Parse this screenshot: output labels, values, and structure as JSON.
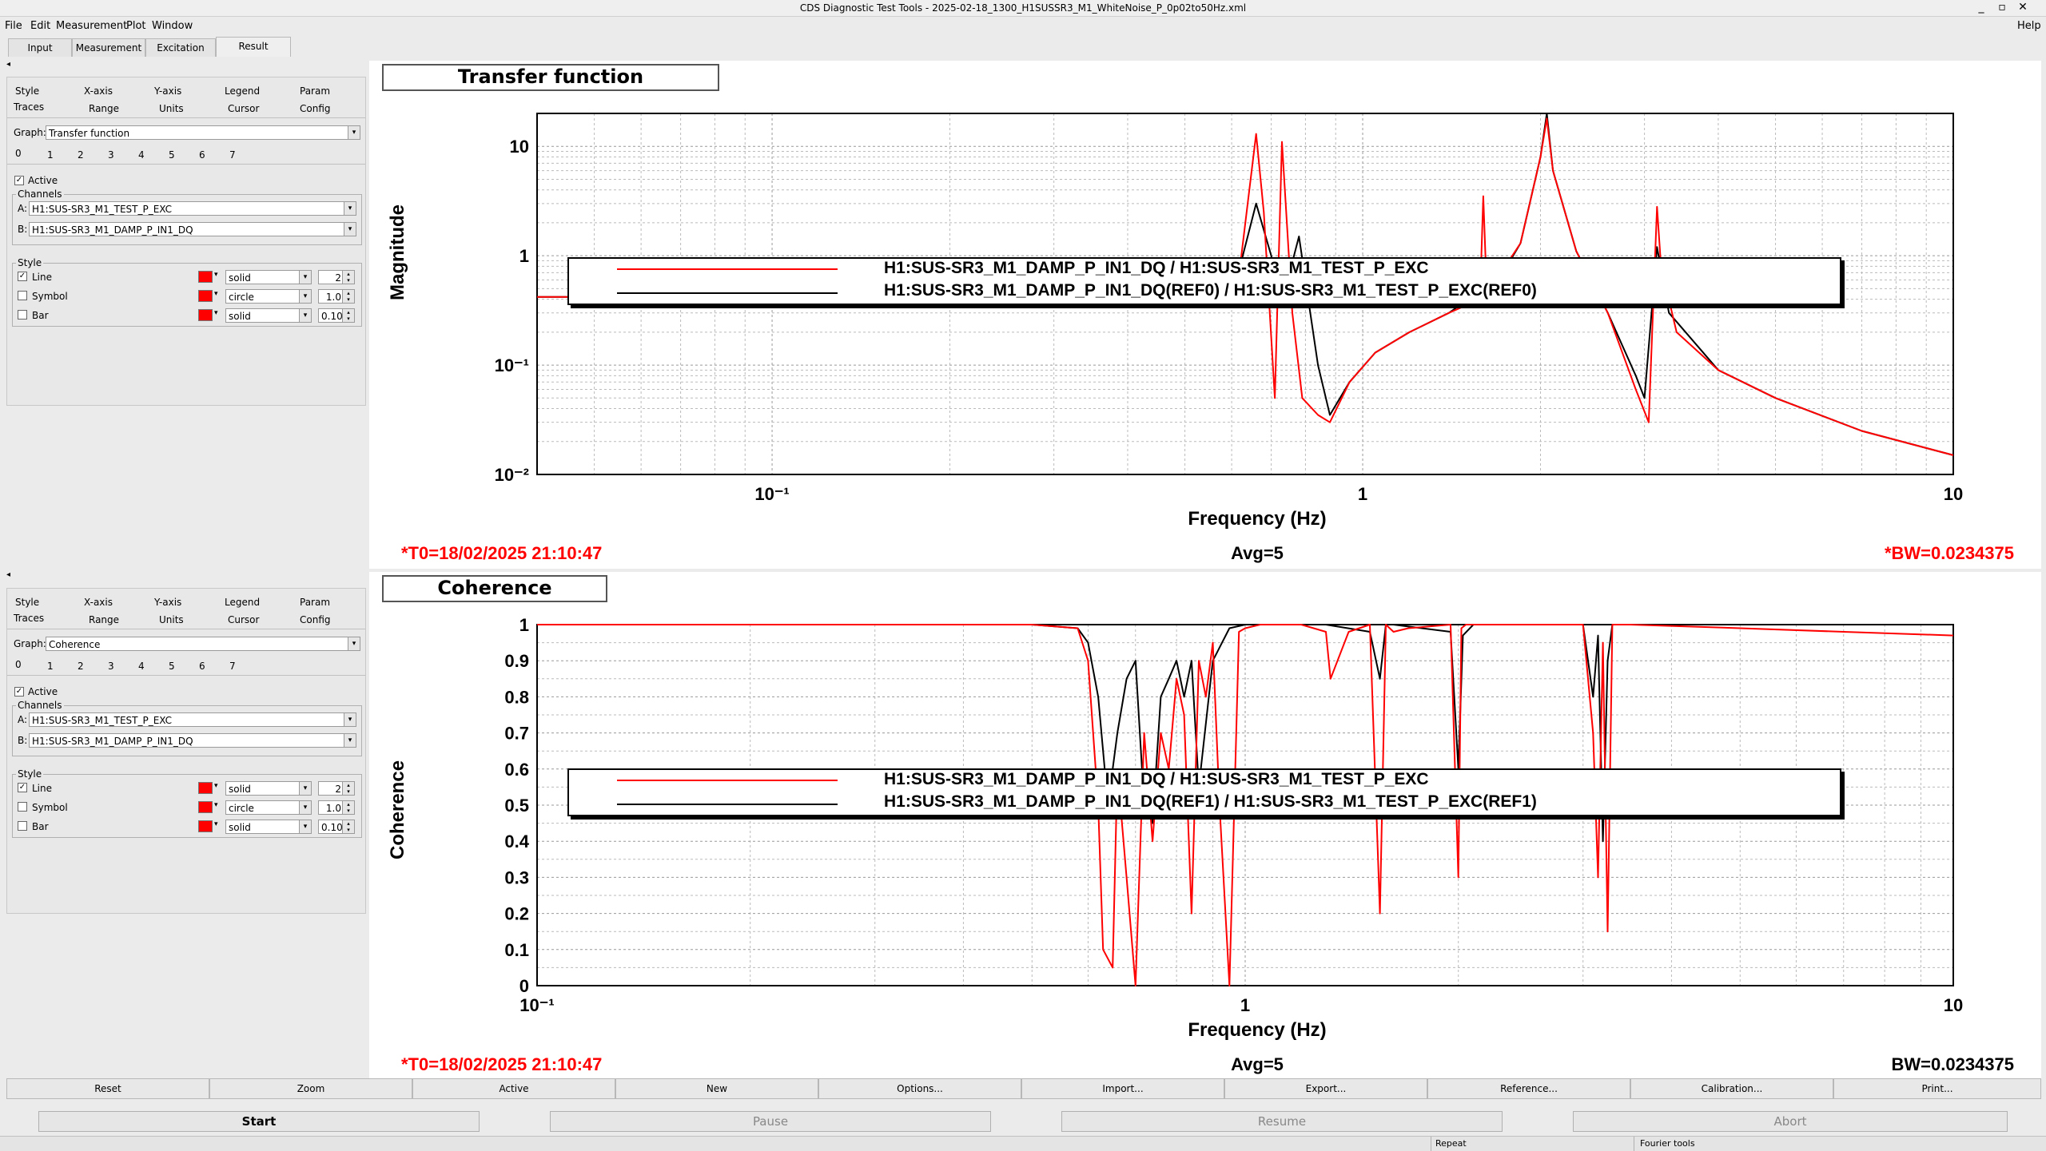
{
  "window": {
    "title": "CDS Diagnostic Test Tools - 2025-02-18_1300_H1SUSSR3_M1_WhiteNoise_P_0p02to50Hz.xml",
    "help": "Help"
  },
  "menu": [
    "File",
    "Edit",
    "Measurement",
    "Plot",
    "Window"
  ],
  "tabs": [
    "Input",
    "Measurement",
    "Excitation",
    "Result"
  ],
  "panels": [
    {
      "subtabs_row1": [
        "Style",
        "X-axis",
        "Y-axis",
        "Legend",
        "Param"
      ],
      "subtabs_row2": [
        "Traces",
        "Range",
        "Units",
        "Cursor",
        "Config"
      ],
      "graph_label": "Graph:",
      "graph_value": "Transfer function",
      "trace_tabs": [
        "0",
        "1",
        "2",
        "3",
        "4",
        "5",
        "6",
        "7"
      ],
      "active_label": "Active",
      "channels_label": "Channels",
      "channel_a_label": "A:",
      "channel_a": "H1:SUS-SR3_M1_TEST_P_EXC",
      "channel_b_label": "B:",
      "channel_b": "H1:SUS-SR3_M1_DAMP_P_IN1_DQ",
      "style_label": "Style",
      "line_label": "Line",
      "line_style": "solid",
      "line_width": "2",
      "symbol_label": "Symbol",
      "symbol_style": "circle",
      "symbol_size": "1.0",
      "bar_label": "Bar",
      "bar_style": "solid",
      "bar_width": "0.10"
    },
    {
      "subtabs_row1": [
        "Style",
        "X-axis",
        "Y-axis",
        "Legend",
        "Param"
      ],
      "subtabs_row2": [
        "Traces",
        "Range",
        "Units",
        "Cursor",
        "Config"
      ],
      "graph_label": "Graph:",
      "graph_value": "Coherence",
      "trace_tabs": [
        "0",
        "1",
        "2",
        "3",
        "4",
        "5",
        "6",
        "7"
      ],
      "active_label": "Active",
      "channels_label": "Channels",
      "channel_a_label": "A:",
      "channel_a": "H1:SUS-SR3_M1_TEST_P_EXC",
      "channel_b_label": "B:",
      "channel_b": "H1:SUS-SR3_M1_DAMP_P_IN1_DQ",
      "style_label": "Style",
      "line_label": "Line",
      "line_style": "solid",
      "line_width": "2",
      "symbol_label": "Symbol",
      "symbol_style": "circle",
      "symbol_size": "1.0",
      "bar_label": "Bar",
      "bar_style": "solid",
      "bar_width": "0.10"
    }
  ],
  "plots": [
    {
      "title": "Transfer function",
      "ylabel": "Magnitude",
      "xlabel": "Frequency (Hz)",
      "yticks": [
        "10",
        "1",
        "10⁻¹",
        "10⁻²"
      ],
      "xticks": [
        "10⁻¹",
        "1",
        "10"
      ],
      "legend": [
        "H1:SUS-SR3_M1_DAMP_P_IN1_DQ / H1:SUS-SR3_M1_TEST_P_EXC",
        "H1:SUS-SR3_M1_DAMP_P_IN1_DQ(REF0) / H1:SUS-SR3_M1_TEST_P_EXC(REF0)"
      ],
      "t0": "*T0=18/02/2025 21:10:47",
      "avg": "Avg=5",
      "bw": "*BW=0.0234375",
      "bw_color": "#ff0000"
    },
    {
      "title": "Coherence",
      "ylabel": "Coherence",
      "xlabel": "Frequency (Hz)",
      "yticks": [
        "1",
        "0.9",
        "0.8",
        "0.7",
        "0.6",
        "0.5",
        "0.4",
        "0.3",
        "0.2",
        "0.1",
        "0"
      ],
      "xticks": [
        "10⁻¹",
        "1",
        "10"
      ],
      "legend": [
        "H1:SUS-SR3_M1_DAMP_P_IN1_DQ / H1:SUS-SR3_M1_TEST_P_EXC",
        "H1:SUS-SR3_M1_DAMP_P_IN1_DQ(REF1) / H1:SUS-SR3_M1_TEST_P_EXC(REF1)"
      ],
      "t0": "*T0=18/02/2025 21:10:47",
      "avg": "Avg=5",
      "bw": "BW=0.0234375",
      "bw_color": "#000000"
    }
  ],
  "colors": {
    "trace": "#ff0000",
    "reference": "#000000",
    "stat_red": "#ff0000"
  },
  "buttons_row1": [
    "Reset",
    "Zoom",
    "Active",
    "New",
    "Options...",
    "Import...",
    "Export...",
    "Reference...",
    "Calibration...",
    "Print..."
  ],
  "buttons_row2": [
    "Start",
    "Pause",
    "Resume",
    "Abort"
  ],
  "status": [
    "Repeat",
    "Fourier tools"
  ],
  "chart_data": [
    {
      "type": "line",
      "title": "Transfer function",
      "xlabel": "Frequency (Hz)",
      "ylabel": "Magnitude",
      "xscale": "log",
      "yscale": "log",
      "xlim": [
        0.04,
        10
      ],
      "ylim": [
        0.01,
        20
      ],
      "grid": true,
      "legend_position": "bottom",
      "series": [
        {
          "name": "H1:SUS-SR3_M1_DAMP_P_IN1_DQ / H1:SUS-SR3_M1_TEST_P_EXC",
          "color": "#ff0000",
          "x": [
            0.04,
            0.1,
            0.2,
            0.4,
            0.55,
            0.62,
            0.66,
            0.68,
            0.71,
            0.73,
            0.76,
            0.79,
            0.84,
            0.88,
            0.95,
            1.05,
            1.2,
            1.4,
            1.58,
            1.6,
            1.62,
            1.7,
            1.85,
            2.0,
            2.05,
            2.1,
            2.3,
            2.6,
            2.9,
            3.05,
            3.15,
            3.2,
            3.4,
            4,
            5,
            7,
            10
          ],
          "y": [
            0.42,
            0.42,
            0.43,
            0.46,
            0.55,
            0.8,
            13,
            2.5,
            0.05,
            11,
            0.3,
            0.05,
            0.035,
            0.03,
            0.07,
            0.13,
            0.2,
            0.3,
            0.4,
            3.5,
            0.55,
            0.65,
            1.3,
            8,
            18,
            6,
            1.1,
            0.3,
            0.06,
            0.03,
            2.8,
            0.8,
            0.2,
            0.09,
            0.05,
            0.025,
            0.015
          ]
        },
        {
          "name": "H1:SUS-SR3_M1_DAMP_P_IN1_DQ(REF0) / H1:SUS-SR3_M1_TEST_P_EXC(REF0)",
          "color": "#000000",
          "x": [
            0.04,
            0.1,
            0.2,
            0.4,
            0.55,
            0.62,
            0.66,
            0.7,
            0.72,
            0.74,
            0.78,
            0.84,
            0.88,
            0.95,
            1.05,
            1.2,
            1.4,
            1.6,
            1.7,
            1.85,
            2.0,
            2.05,
            2.1,
            2.3,
            2.6,
            2.9,
            3.0,
            3.15,
            3.3,
            4,
            5,
            7,
            10
          ],
          "y": [
            0.42,
            0.42,
            0.43,
            0.46,
            0.55,
            0.8,
            3.0,
            1.0,
            0.4,
            0.5,
            1.5,
            0.1,
            0.035,
            0.07,
            0.13,
            0.2,
            0.3,
            0.5,
            0.6,
            1.3,
            8,
            20,
            6,
            1.1,
            0.3,
            0.08,
            0.05,
            1.2,
            0.3,
            0.09,
            0.05,
            0.025,
            0.015
          ]
        }
      ]
    },
    {
      "type": "line",
      "title": "Coherence",
      "xlabel": "Frequency (Hz)",
      "ylabel": "Coherence",
      "xscale": "log",
      "xlim": [
        0.1,
        10
      ],
      "ylim": [
        0,
        1
      ],
      "grid": true,
      "legend_position": "bottom",
      "series": [
        {
          "name": "H1:SUS-SR3_M1_DAMP_P_IN1_DQ / H1:SUS-SR3_M1_TEST_P_EXC",
          "color": "#ff0000",
          "x": [
            0.1,
            0.5,
            0.58,
            0.6,
            0.62,
            0.63,
            0.65,
            0.66,
            0.68,
            0.7,
            0.72,
            0.74,
            0.76,
            0.78,
            0.8,
            0.82,
            0.84,
            0.86,
            0.88,
            0.9,
            0.92,
            0.95,
            0.98,
            1.0,
            1.05,
            1.2,
            1.3,
            1.32,
            1.4,
            1.5,
            1.55,
            1.58,
            1.62,
            1.7,
            1.95,
            2.0,
            2.02,
            2.05,
            2.2,
            2.5,
            3.0,
            3.1,
            3.15,
            3.2,
            3.25,
            3.3,
            3.5,
            5,
            7,
            10
          ],
          "y": [
            1,
            1,
            0.99,
            0.9,
            0.5,
            0.1,
            0.05,
            0.6,
            0.3,
            0.0,
            0.7,
            0.4,
            0.7,
            0.6,
            0.85,
            0.75,
            0.2,
            0.9,
            0.8,
            0.95,
            0.5,
            0.0,
            0.98,
            0.99,
            1,
            1,
            0.98,
            0.85,
            0.98,
            1,
            0.2,
            1,
            0.98,
            0.99,
            1,
            0.3,
            0.99,
            1,
            1,
            1,
            1,
            0.7,
            0.3,
            0.95,
            0.15,
            1,
            1,
            0.99,
            0.98,
            0.97
          ]
        },
        {
          "name": "H1:SUS-SR3_M1_DAMP_P_IN1_DQ(REF1) / H1:SUS-SR3_M1_TEST_P_EXC(REF1)",
          "color": "#000000",
          "x": [
            0.1,
            0.5,
            0.58,
            0.6,
            0.62,
            0.64,
            0.66,
            0.68,
            0.7,
            0.72,
            0.74,
            0.76,
            0.78,
            0.8,
            0.82,
            0.84,
            0.86,
            0.9,
            0.95,
            1.0,
            1.3,
            1.5,
            1.55,
            1.58,
            1.62,
            1.95,
            2.0,
            2.03,
            2.1,
            3.0,
            3.1,
            3.15,
            3.2,
            3.25,
            3.3,
            10
          ],
          "y": [
            1,
            1,
            0.99,
            0.95,
            0.8,
            0.5,
            0.7,
            0.85,
            0.9,
            0.5,
            0.45,
            0.8,
            0.85,
            0.9,
            0.8,
            0.9,
            0.55,
            0.9,
            0.99,
            1,
            1,
            0.98,
            0.85,
            1,
            1,
            0.98,
            0.6,
            0.97,
            1,
            1,
            0.8,
            0.97,
            0.4,
            0.9,
            1,
            1
          ]
        }
      ]
    }
  ]
}
